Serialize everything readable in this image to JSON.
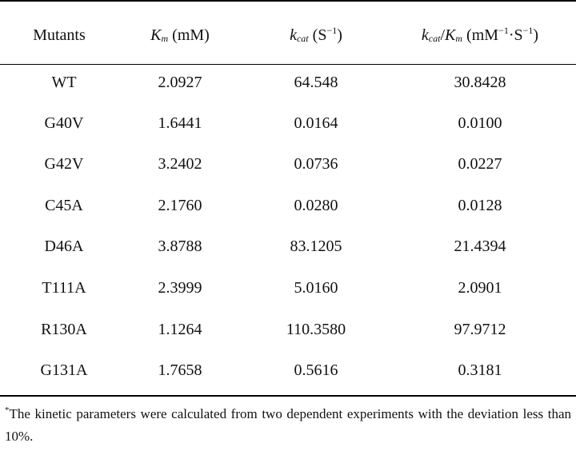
{
  "table": {
    "headers": {
      "mutants": "Mutants",
      "km_symbol": "K",
      "km_sub": "m",
      "km_unit": " (mM)",
      "kcat_symbol": "k",
      "kcat_sub": "cat",
      "kcat_unit_open": " (S",
      "kcat_unit_sup": "−1",
      "kcat_unit_close": ")",
      "ratio_k": "k",
      "ratio_k_sub": "cat",
      "ratio_slash": "/",
      "ratio_K": "K",
      "ratio_K_sub": "m",
      "ratio_unit_open": " (mM",
      "ratio_unit_sup1": "−1",
      "ratio_unit_mid": "·S",
      "ratio_unit_sup2": "−1",
      "ratio_unit_close": ")"
    },
    "rows": [
      {
        "mutant": "WT",
        "km": "2.0927",
        "kcat": "64.548",
        "ratio": "30.8428"
      },
      {
        "mutant": "G40V",
        "km": "1.6441",
        "kcat": "0.0164",
        "ratio": "0.0100"
      },
      {
        "mutant": "G42V",
        "km": "3.2402",
        "kcat": "0.0736",
        "ratio": "0.0227"
      },
      {
        "mutant": "C45A",
        "km": "2.1760",
        "kcat": "0.0280",
        "ratio": "0.0128"
      },
      {
        "mutant": "D46A",
        "km": "3.8788",
        "kcat": "83.1205",
        "ratio": "21.4394"
      },
      {
        "mutant": "T111A",
        "km": "2.3999",
        "kcat": "5.0160",
        "ratio": "2.0901"
      },
      {
        "mutant": "R130A",
        "km": "1.1264",
        "kcat": "110.3580",
        "ratio": "97.9712"
      },
      {
        "mutant": "G131A",
        "km": "1.7658",
        "kcat": "0.5616",
        "ratio": "0.3181"
      }
    ]
  },
  "footnote": {
    "marker": "*",
    "text": "The kinetic parameters were calculated from two dependent experiments with the deviation less than 10%."
  }
}
